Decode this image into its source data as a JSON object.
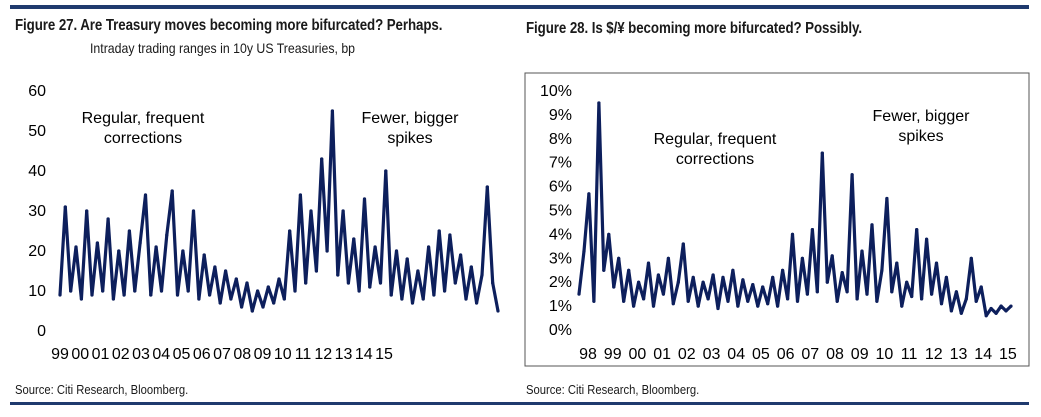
{
  "chart_data": [
    {
      "type": "line",
      "title": "Figure 27. Are Treasury moves becoming more bifurcated? Perhaps.",
      "subtitle": "Intraday trading ranges in 10y US Treasuries, bp",
      "source": "Source: Citi Research, Bloomberg.",
      "xlabel": "",
      "ylabel": "",
      "ylim": [
        0,
        60
      ],
      "yticks": [
        "0",
        "10",
        "20",
        "30",
        "40",
        "50",
        "60"
      ],
      "xticks": [
        "99",
        "00",
        "01",
        "02",
        "03",
        "04",
        "05",
        "06",
        "07",
        "08",
        "09",
        "10",
        "11",
        "12",
        "13",
        "14",
        "15"
      ],
      "xrange": [
        1999.0,
        2015.4
      ],
      "grid": false,
      "annotations": [
        {
          "lines": [
            "Regular, frequent",
            "corrections"
          ]
        },
        {
          "lines": [
            "Fewer, bigger",
            "spikes"
          ]
        }
      ],
      "series": [
        {
          "color": "#0d1f5c",
          "x": [
            1999.0,
            1999.2,
            1999.4,
            1999.6,
            1999.8,
            2000.0,
            2000.2,
            2000.4,
            2000.6,
            2000.8,
            2001.0,
            2001.2,
            2001.4,
            2001.6,
            2001.8,
            2002.0,
            2002.2,
            2002.4,
            2002.6,
            2002.8,
            2003.0,
            2003.2,
            2003.4,
            2003.6,
            2003.8,
            2004.0,
            2004.2,
            2004.4,
            2004.6,
            2004.8,
            2005.0,
            2005.2,
            2005.4,
            2005.6,
            2005.8,
            2006.0,
            2006.2,
            2006.4,
            2006.6,
            2006.8,
            2007.0,
            2007.2,
            2007.4,
            2007.6,
            2007.8,
            2008.0,
            2008.2,
            2008.4,
            2008.6,
            2008.8,
            2009.0,
            2009.2,
            2009.4,
            2009.6,
            2009.8,
            2010.0,
            2010.2,
            2010.4,
            2010.6,
            2010.8,
            2011.0,
            2011.2,
            2011.4,
            2011.6,
            2011.8,
            2012.0,
            2012.2,
            2012.4,
            2012.6,
            2012.8,
            2013.0,
            2013.2,
            2013.4,
            2013.6,
            2013.8,
            2014.0,
            2014.2,
            2014.4,
            2014.6,
            2014.8,
            2015.0,
            2015.2,
            2015.4
          ],
          "values": [
            9,
            31,
            10,
            21,
            8,
            30,
            9,
            22,
            10,
            28,
            8,
            20,
            9,
            25,
            10,
            22,
            34,
            9,
            21,
            10,
            24,
            35,
            9,
            20,
            10,
            30,
            8,
            19,
            9,
            16,
            7,
            15,
            8,
            13,
            6,
            12,
            5,
            10,
            6,
            11,
            7,
            13,
            8,
            25,
            10,
            34,
            12,
            30,
            15,
            43,
            20,
            55,
            14,
            30,
            12,
            23,
            10,
            33,
            11,
            21,
            12,
            40,
            9,
            20,
            8,
            18,
            7,
            15,
            8,
            21,
            9,
            25,
            10,
            24,
            12,
            19,
            8,
            16,
            7,
            14,
            36,
            12,
            5
          ]
        }
      ]
    },
    {
      "type": "line",
      "title": "Figure 28. Is $/¥ becoming more bifurcated? Possibly.",
      "source": "Source: Citi Research, Bloomberg.",
      "xlabel": "",
      "ylabel": "",
      "ylim": [
        0,
        10
      ],
      "yticks": [
        "0%",
        "1%",
        "2%",
        "3%",
        "4%",
        "5%",
        "6%",
        "7%",
        "8%",
        "9%",
        "10%"
      ],
      "xticks": [
        "98",
        "99",
        "00",
        "01",
        "02",
        "03",
        "04",
        "05",
        "06",
        "07",
        "08",
        "09",
        "10",
        "11",
        "12",
        "13",
        "14",
        "15"
      ],
      "xrange": [
        1998.0,
        2015.4
      ],
      "grid": false,
      "annotations": [
        {
          "lines": [
            "Regular, frequent",
            "corrections"
          ]
        },
        {
          "lines": [
            "Fewer, bigger",
            "spikes"
          ]
        }
      ],
      "series": [
        {
          "color": "#0d1f5c",
          "x": [
            1998.0,
            1998.2,
            1998.4,
            1998.6,
            1998.8,
            1999.0,
            1999.2,
            1999.4,
            1999.6,
            1999.8,
            2000.0,
            2000.2,
            2000.4,
            2000.6,
            2000.8,
            2001.0,
            2001.2,
            2001.4,
            2001.6,
            2001.8,
            2002.0,
            2002.2,
            2002.4,
            2002.6,
            2002.8,
            2003.0,
            2003.2,
            2003.4,
            2003.6,
            2003.8,
            2004.0,
            2004.2,
            2004.4,
            2004.6,
            2004.8,
            2005.0,
            2005.2,
            2005.4,
            2005.6,
            2005.8,
            2006.0,
            2006.2,
            2006.4,
            2006.6,
            2006.8,
            2007.0,
            2007.2,
            2007.4,
            2007.6,
            2007.8,
            2008.0,
            2008.2,
            2008.4,
            2008.6,
            2008.8,
            2009.0,
            2009.2,
            2009.4,
            2009.6,
            2009.8,
            2010.0,
            2010.2,
            2010.4,
            2010.6,
            2010.8,
            2011.0,
            2011.2,
            2011.4,
            2011.6,
            2011.8,
            2012.0,
            2012.2,
            2012.4,
            2012.6,
            2012.8,
            2013.0,
            2013.2,
            2013.4,
            2013.6,
            2013.8,
            2014.0,
            2014.2,
            2014.4,
            2014.6,
            2014.8,
            2015.0,
            2015.2,
            2015.4
          ],
          "values": [
            1.5,
            3.3,
            5.7,
            1.2,
            9.5,
            2.5,
            4.0,
            1.8,
            3.0,
            1.2,
            2.5,
            1.0,
            2.0,
            1.3,
            2.8,
            1.0,
            2.3,
            1.5,
            3.0,
            1.1,
            2.0,
            3.6,
            1.2,
            2.2,
            1.0,
            2.0,
            1.3,
            2.3,
            0.9,
            2.2,
            1.2,
            2.5,
            1.0,
            2.1,
            1.2,
            1.9,
            1.0,
            1.8,
            1.1,
            2.2,
            1.0,
            2.5,
            1.3,
            4.0,
            1.2,
            3.0,
            1.5,
            4.2,
            1.6,
            7.4,
            2.0,
            3.1,
            1.2,
            2.4,
            1.6,
            6.5,
            1.3,
            3.3,
            1.5,
            4.4,
            1.2,
            2.5,
            5.5,
            1.6,
            2.8,
            1.0,
            2.0,
            1.4,
            4.2,
            1.3,
            3.8,
            1.5,
            2.8,
            1.1,
            2.2,
            0.8,
            1.6,
            0.7,
            1.3,
            3.0,
            1.2,
            1.8,
            0.6,
            0.9,
            0.7,
            1.0,
            0.8,
            1.0
          ]
        }
      ]
    }
  ]
}
